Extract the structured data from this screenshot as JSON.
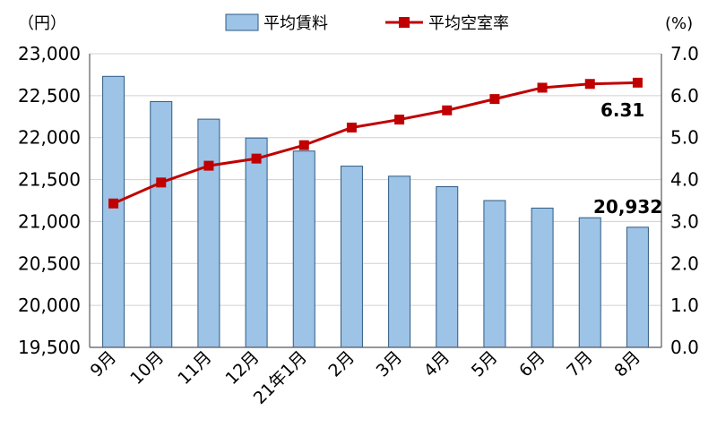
{
  "chart_data": {
    "type": "bar+line",
    "categories": [
      "9月",
      "10月",
      "11月",
      "12月",
      "21年1月",
      "2月",
      "3月",
      "4月",
      "5月",
      "6月",
      "7月",
      "8月"
    ],
    "series": [
      {
        "name": "平均賃料",
        "kind": "bar",
        "axis": "left",
        "color": "#9dc3e6",
        "values": [
          22730,
          22430,
          22220,
          21995,
          21840,
          21660,
          21540,
          21415,
          21250,
          21160,
          21045,
          20932
        ]
      },
      {
        "name": "平均空室率",
        "kind": "line",
        "axis": "right",
        "color": "#c00000",
        "values": [
          3.43,
          3.93,
          4.33,
          4.5,
          4.82,
          5.24,
          5.43,
          5.65,
          5.92,
          6.19,
          6.28,
          6.31
        ]
      }
    ],
    "y_left": {
      "unit_label": "（円）",
      "ylim": [
        19500,
        23000
      ],
      "ticks": [
        "19,500",
        "20,000",
        "20,500",
        "21,000",
        "21,500",
        "22,000",
        "22,500",
        "23,000"
      ]
    },
    "y_right": {
      "unit_label": "(%)",
      "ylim": [
        0,
        7
      ],
      "ticks": [
        "0.0",
        "1.0",
        "2.0",
        "3.0",
        "4.0",
        "5.0",
        "6.0",
        "7.0"
      ]
    },
    "annotations": {
      "last_bar_label": "20,932",
      "last_line_label": "6.31"
    },
    "legend_position": "top-center",
    "grid": true
  }
}
